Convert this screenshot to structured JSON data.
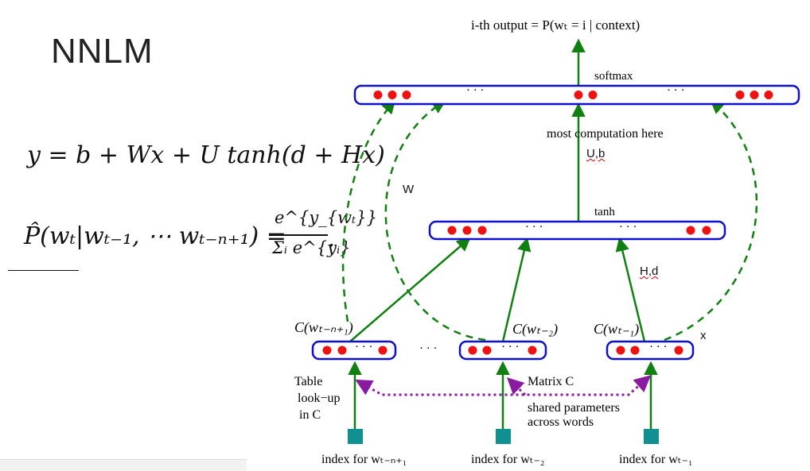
{
  "slide": {
    "title": "NNLM"
  },
  "equations": {
    "eq1": "y = b + Wx + U tanh(d + Hx)",
    "eq2_lhs": "P̂(wₜ|wₜ₋₁, ⋯ wₜ₋ₙ₊₁) =",
    "eq2_num": "e^{y_{wₜ}}",
    "eq2_den": "Σᵢ e^{yᵢ}",
    "eq2_end": "."
  },
  "diagram": {
    "output_label": "i-th output = P(wₜ = i | context)",
    "softmax_label": "softmax",
    "most_computation": "most  computation here",
    "ub_label": "U,b",
    "w_label": "W",
    "tanh_label": "tanh",
    "hd_label": "H,d",
    "x_label": "x",
    "ctx_label_1": "C(wₜ₋ₙ₊₁)",
    "ctx_label_2": "C(wₜ₋₂)",
    "ctx_label_3": "C(wₜ₋₁)",
    "ellipsis": "· · ·",
    "table_lookup": [
      "Table",
      "look−up",
      "in C"
    ],
    "matrix_c": "Matrix C",
    "shared_params": [
      "shared parameters",
      "across words"
    ],
    "index_1": "index for wₜ₋ₙ₊₁",
    "index_2": "index for wₜ₋₂",
    "index_3": "index for wₜ₋₁"
  },
  "colors": {
    "box": "#1010c8",
    "dot": "#ee1111",
    "arrow": "#108010",
    "shared": "#8a1aa0",
    "index": "#109090"
  }
}
